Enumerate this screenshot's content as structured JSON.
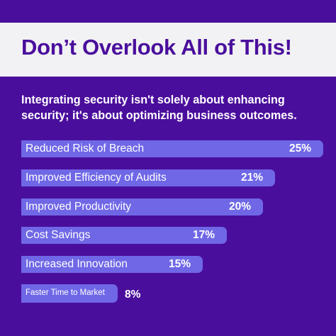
{
  "title": "Don’t Overlook All of This!",
  "subtitle": "Integrating security isn't solely about enhancing security; it's about optimizing business outcomes.",
  "colors": {
    "background": "#4a0e9c",
    "title_band": "#f2f2f4",
    "title_text": "#4a0e9c",
    "bar": "#6f67e6",
    "text": "#ffffff"
  },
  "chart_data": {
    "type": "bar",
    "orientation": "horizontal",
    "categories": [
      "Reduced Risk of Breach",
      "Improved Efficiency of Audits",
      "Improved Productivity",
      "Cost Savings",
      "Increased Innovation",
      "Faster Time to Market"
    ],
    "values": [
      25,
      21,
      20,
      17,
      15,
      8
    ],
    "value_labels": [
      "25%",
      "21%",
      "20%",
      "17%",
      "15%",
      "8%"
    ],
    "unit": "%",
    "xlim": [
      0,
      25
    ],
    "grid": false,
    "legend": "none"
  }
}
